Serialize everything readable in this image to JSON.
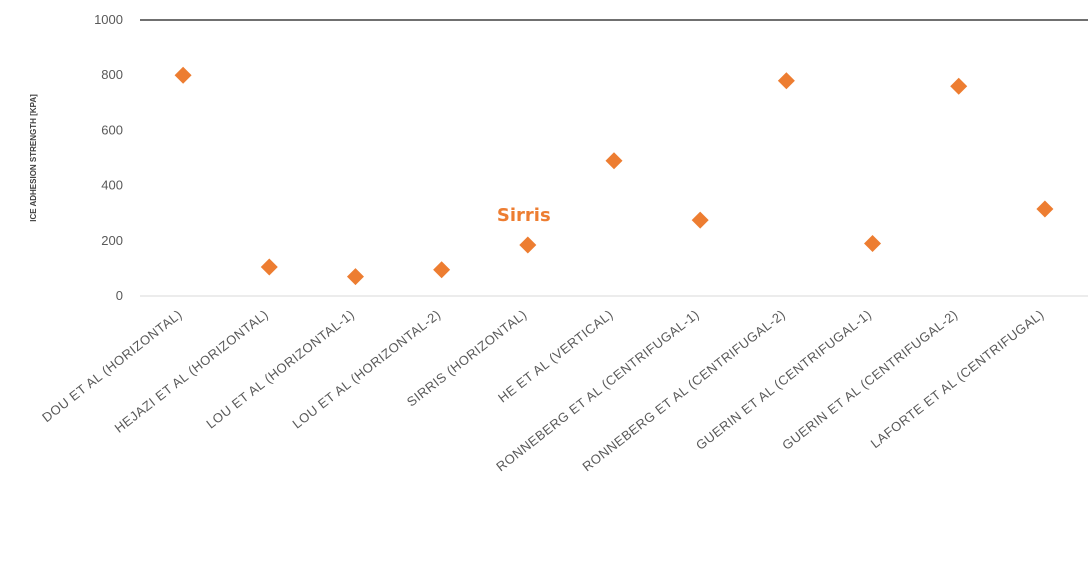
{
  "chart_data": {
    "type": "scatter",
    "title": "",
    "xlabel": "",
    "ylabel": "ICE ADHESION STRENGTH [KPA]",
    "ylim": [
      0,
      1000
    ],
    "yticks": [
      0,
      200,
      400,
      600,
      800,
      1000
    ],
    "grid": false,
    "legend": "none",
    "marker": "diamond",
    "categories": [
      "DOU ET AL (HORIZONTAL)",
      "HEJAZI ET AL (HORIZONTAL)",
      "LOU ET AL (HORIZONTAL-1)",
      "LOU ET AL (HORIZONTAL-2)",
      "SIRRIS (HORIZONTAL)",
      "HE ET AL (VERTICAL)",
      "RONNEBERG ET AL (CENTRIFUGAL-1)",
      "RONNEBERG ET AL (CENTRIFUGAL-2)",
      "GUERIN ET AL (CENTRIFUGAL-1)",
      "GUERIN ET AL (CENTRIFUGAL-2)",
      "LAFORTE ET AL (CENTRIFUGAL)"
    ],
    "series": [
      {
        "values": [
          800,
          105,
          70,
          95,
          185,
          490,
          275,
          780,
          190,
          760,
          315
        ]
      }
    ],
    "annotations": [
      {
        "text": "Sirris",
        "category": "SIRRIS (HORIZONTAL)"
      }
    ],
    "colors": {
      "marker": "#ED7D31",
      "annotation": "#ED7D31",
      "axis": "#D9D9D9",
      "top_line": "#404040"
    }
  }
}
